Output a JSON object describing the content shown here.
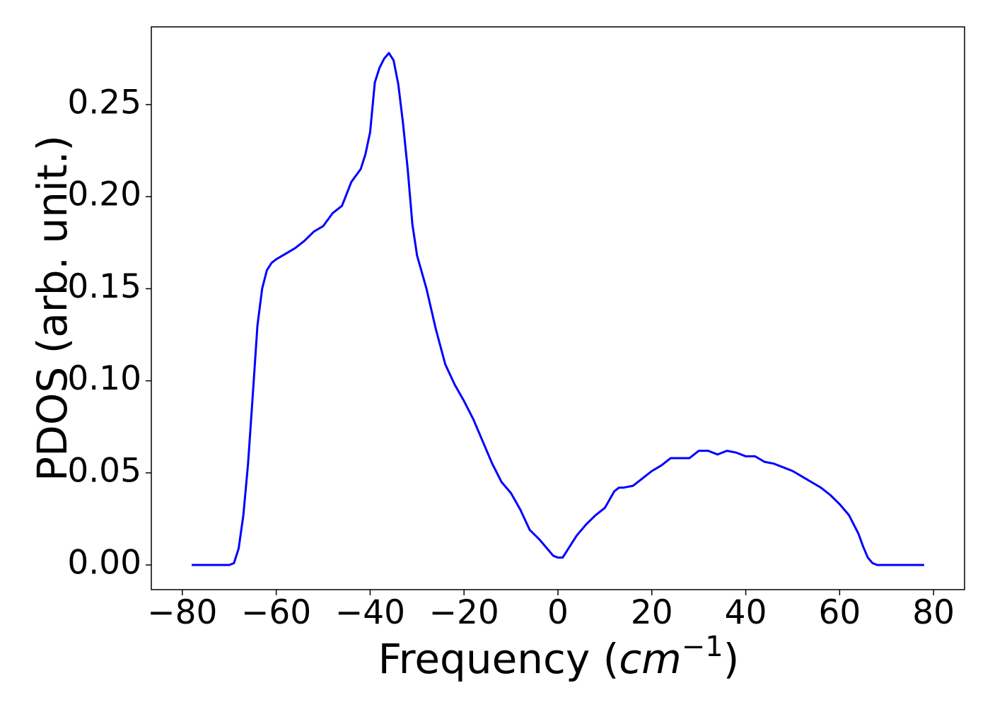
{
  "chart_data": {
    "type": "line",
    "ylabel": "PDOS (arb. unit.)",
    "xlabel": {
      "prefix": "Frequency (",
      "unit": "cm",
      "exponent": "−1",
      "suffix": ")"
    },
    "xlim": [
      -86.6,
      86.6
    ],
    "ylim": [
      -0.0134,
      0.2922
    ],
    "xticks": [
      {
        "value": -80,
        "label": "−80"
      },
      {
        "value": -60,
        "label": "−60"
      },
      {
        "value": -40,
        "label": "−40"
      },
      {
        "value": -20,
        "label": "−20"
      },
      0,
      20,
      40,
      60,
      80
    ],
    "yticks": [
      {
        "value": 0,
        "label": "0.00"
      },
      0.05,
      {
        "value": 0.1,
        "label": "0.10"
      },
      0.15,
      {
        "value": 0.2,
        "label": "0.20"
      },
      0.25
    ],
    "grid": false,
    "series": [
      {
        "color": "#0000ff",
        "x": [
          -78,
          -76,
          -74,
          -72,
          -70,
          -69,
          -68,
          -67,
          -66,
          -65,
          -64,
          -63,
          -62,
          -61,
          -60,
          -58,
          -56,
          -54,
          -52,
          -50,
          -48,
          -46,
          -44,
          -42,
          -41,
          -40,
          -39,
          -38,
          -37,
          -36,
          -35,
          -34,
          -33,
          -32,
          -31,
          -30,
          -28,
          -26,
          -24,
          -22,
          -20,
          -18,
          -16,
          -14,
          -12,
          -10,
          -8,
          -6,
          -4,
          -2,
          -1,
          0,
          1,
          2,
          4,
          6,
          8,
          10,
          12,
          13,
          14,
          16,
          18,
          20,
          22,
          24,
          26,
          28,
          30,
          32,
          34,
          36,
          38,
          40,
          42,
          44,
          46,
          48,
          50,
          52,
          54,
          56,
          58,
          60,
          62,
          64,
          65,
          66,
          67,
          68,
          70,
          72,
          74,
          76,
          78
        ],
        "values": [
          0,
          0,
          0,
          0,
          0,
          0.001,
          0.009,
          0.027,
          0.055,
          0.092,
          0.13,
          0.15,
          0.16,
          0.164,
          0.166,
          0.169,
          0.172,
          0.176,
          0.181,
          0.184,
          0.191,
          0.195,
          0.208,
          0.215,
          0.223,
          0.235,
          0.262,
          0.27,
          0.275,
          0.278,
          0.274,
          0.261,
          0.24,
          0.215,
          0.185,
          0.168,
          0.15,
          0.128,
          0.109,
          0.098,
          0.089,
          0.079,
          0.067,
          0.055,
          0.045,
          0.039,
          0.03,
          0.019,
          0.014,
          0.008,
          0.005,
          0.004,
          0.004,
          0.008,
          0.016,
          0.022,
          0.027,
          0.031,
          0.04,
          0.042,
          0.042,
          0.043,
          0.047,
          0.051,
          0.054,
          0.058,
          0.058,
          0.058,
          0.062,
          0.062,
          0.06,
          0.062,
          0.061,
          0.059,
          0.059,
          0.056,
          0.055,
          0.053,
          0.051,
          0.048,
          0.045,
          0.042,
          0.038,
          0.033,
          0.027,
          0.017,
          0.01,
          0.004,
          0.001,
          0,
          0,
          0,
          0,
          0,
          0
        ]
      }
    ]
  }
}
